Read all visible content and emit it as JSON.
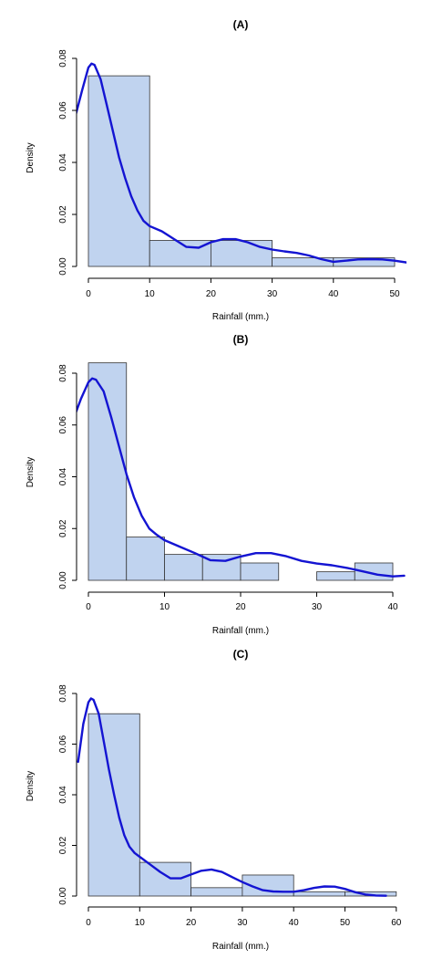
{
  "colors": {
    "bar_fill": "#c0d3ef",
    "bar_stroke": "#333333",
    "curve": "#1414d2"
  },
  "chart_data": [
    {
      "type": "bar",
      "subtype": "histogram-with-density-curve",
      "title": "(A)",
      "xlabel": "Rainfall (mm.)",
      "ylabel": "Density",
      "xlim": [
        0,
        52
      ],
      "ylim": [
        0,
        0.08
      ],
      "x_ticks": [
        0,
        10,
        20,
        30,
        40,
        50
      ],
      "x_tick_labels": [
        "0",
        "10",
        "20",
        "30",
        "40",
        "50"
      ],
      "y_ticks": [
        0,
        0.02,
        0.04,
        0.06,
        0.08
      ],
      "y_tick_labels": [
        "0.00",
        "0.02",
        "0.04",
        "0.06",
        "0.08"
      ],
      "bins": [
        {
          "x0": 0,
          "x1": 10,
          "density": 0.0733
        },
        {
          "x0": 10,
          "x1": 20,
          "density": 0.01
        },
        {
          "x0": 20,
          "x1": 30,
          "density": 0.01
        },
        {
          "x0": 30,
          "x1": 40,
          "density": 0.0033
        },
        {
          "x0": 40,
          "x1": 50,
          "density": 0.0033
        }
      ],
      "density_curve": {
        "x": [
          -2,
          -1,
          0,
          0.5,
          1,
          2,
          3,
          4,
          5,
          6,
          7,
          8,
          9,
          10,
          12,
          14,
          16,
          18,
          20,
          22,
          24,
          26,
          28,
          30,
          32,
          34,
          36,
          38,
          40,
          42,
          44,
          46,
          48,
          50,
          52
        ],
        "y": [
          0.059,
          0.068,
          0.0765,
          0.078,
          0.0775,
          0.072,
          0.062,
          0.052,
          0.042,
          0.034,
          0.027,
          0.0215,
          0.0175,
          0.0155,
          0.0135,
          0.0105,
          0.0075,
          0.0072,
          0.0093,
          0.0105,
          0.0105,
          0.0093,
          0.0075,
          0.0065,
          0.0058,
          0.0052,
          0.0042,
          0.0028,
          0.0018,
          0.0022,
          0.0027,
          0.0028,
          0.0027,
          0.0022,
          0.0015
        ]
      }
    },
    {
      "type": "bar",
      "subtype": "histogram-with-density-curve",
      "title": "(B)",
      "xlabel": "Rainfall (mm.)",
      "ylabel": "Density",
      "xlim": [
        0,
        41.5
      ],
      "ylim": [
        0,
        0.08
      ],
      "x_ticks": [
        0,
        10,
        20,
        30,
        40
      ],
      "x_tick_labels": [
        "0",
        "10",
        "20",
        "30",
        "40"
      ],
      "y_ticks": [
        0,
        0.02,
        0.04,
        0.06,
        0.08
      ],
      "y_tick_labels": [
        "0.00",
        "0.02",
        "0.04",
        "0.06",
        "0.08"
      ],
      "bins": [
        {
          "x0": 0,
          "x1": 5,
          "density": 0.084
        },
        {
          "x0": 5,
          "x1": 10,
          "density": 0.0167
        },
        {
          "x0": 10,
          "x1": 15,
          "density": 0.01
        },
        {
          "x0": 15,
          "x1": 20,
          "density": 0.01
        },
        {
          "x0": 20,
          "x1": 25,
          "density": 0.0067
        },
        {
          "x0": 25,
          "x1": 30,
          "density": 0.0
        },
        {
          "x0": 30,
          "x1": 35,
          "density": 0.0033
        },
        {
          "x0": 35,
          "x1": 40,
          "density": 0.0067
        }
      ],
      "density_curve": {
        "x": [
          -2,
          -1,
          0,
          0.5,
          1,
          2,
          3,
          4,
          5,
          6,
          7,
          8,
          9,
          10,
          12,
          14,
          16,
          18,
          20,
          22,
          24,
          26,
          28,
          30,
          32,
          34,
          36,
          38,
          40,
          41.5
        ],
        "y": [
          0.062,
          0.07,
          0.0765,
          0.078,
          0.0775,
          0.073,
          0.063,
          0.052,
          0.041,
          0.032,
          0.025,
          0.02,
          0.0175,
          0.0155,
          0.013,
          0.0105,
          0.0078,
          0.0075,
          0.0092,
          0.0105,
          0.0105,
          0.0093,
          0.0075,
          0.0065,
          0.0058,
          0.0048,
          0.0035,
          0.0022,
          0.0015,
          0.0018
        ]
      }
    },
    {
      "type": "bar",
      "subtype": "histogram-with-density-curve",
      "title": "(C)",
      "xlabel": "Rainfall (mm.)",
      "ylabel": "Density",
      "xlim": [
        0,
        60
      ],
      "ylim": [
        0,
        0.08
      ],
      "x_ticks": [
        0,
        10,
        20,
        30,
        40,
        50,
        60
      ],
      "x_tick_labels": [
        "0",
        "10",
        "20",
        "30",
        "40",
        "50",
        "60"
      ],
      "y_ticks": [
        0,
        0.02,
        0.04,
        0.06,
        0.08
      ],
      "y_tick_labels": [
        "0.00",
        "0.02",
        "0.04",
        "0.06",
        "0.08"
      ],
      "bins": [
        {
          "x0": 0,
          "x1": 10,
          "density": 0.072
        },
        {
          "x0": 10,
          "x1": 20,
          "density": 0.0133
        },
        {
          "x0": 20,
          "x1": 30,
          "density": 0.0033
        },
        {
          "x0": 30,
          "x1": 40,
          "density": 0.0083
        },
        {
          "x0": 40,
          "x1": 50,
          "density": 0.0017
        },
        {
          "x0": 50,
          "x1": 60,
          "density": 0.0017
        }
      ],
      "density_curve": {
        "x": [
          -2,
          -1,
          0,
          0.5,
          1,
          2,
          3,
          4,
          5,
          6,
          7,
          8,
          9,
          10,
          12,
          14,
          16,
          18,
          20,
          22,
          24,
          26,
          28,
          30,
          32,
          34,
          36,
          38,
          40,
          42,
          44,
          46,
          48,
          50,
          52,
          54,
          56,
          58
        ],
        "y": [
          0.053,
          0.068,
          0.0765,
          0.078,
          0.0775,
          0.072,
          0.061,
          0.05,
          0.04,
          0.031,
          0.024,
          0.0195,
          0.017,
          0.0155,
          0.0125,
          0.0095,
          0.007,
          0.007,
          0.0085,
          0.01,
          0.0105,
          0.0095,
          0.0075,
          0.0055,
          0.0038,
          0.0023,
          0.0018,
          0.0017,
          0.0017,
          0.0023,
          0.0032,
          0.0038,
          0.0037,
          0.0028,
          0.0015,
          0.0006,
          0.0002,
          0.0001
        ]
      }
    }
  ]
}
